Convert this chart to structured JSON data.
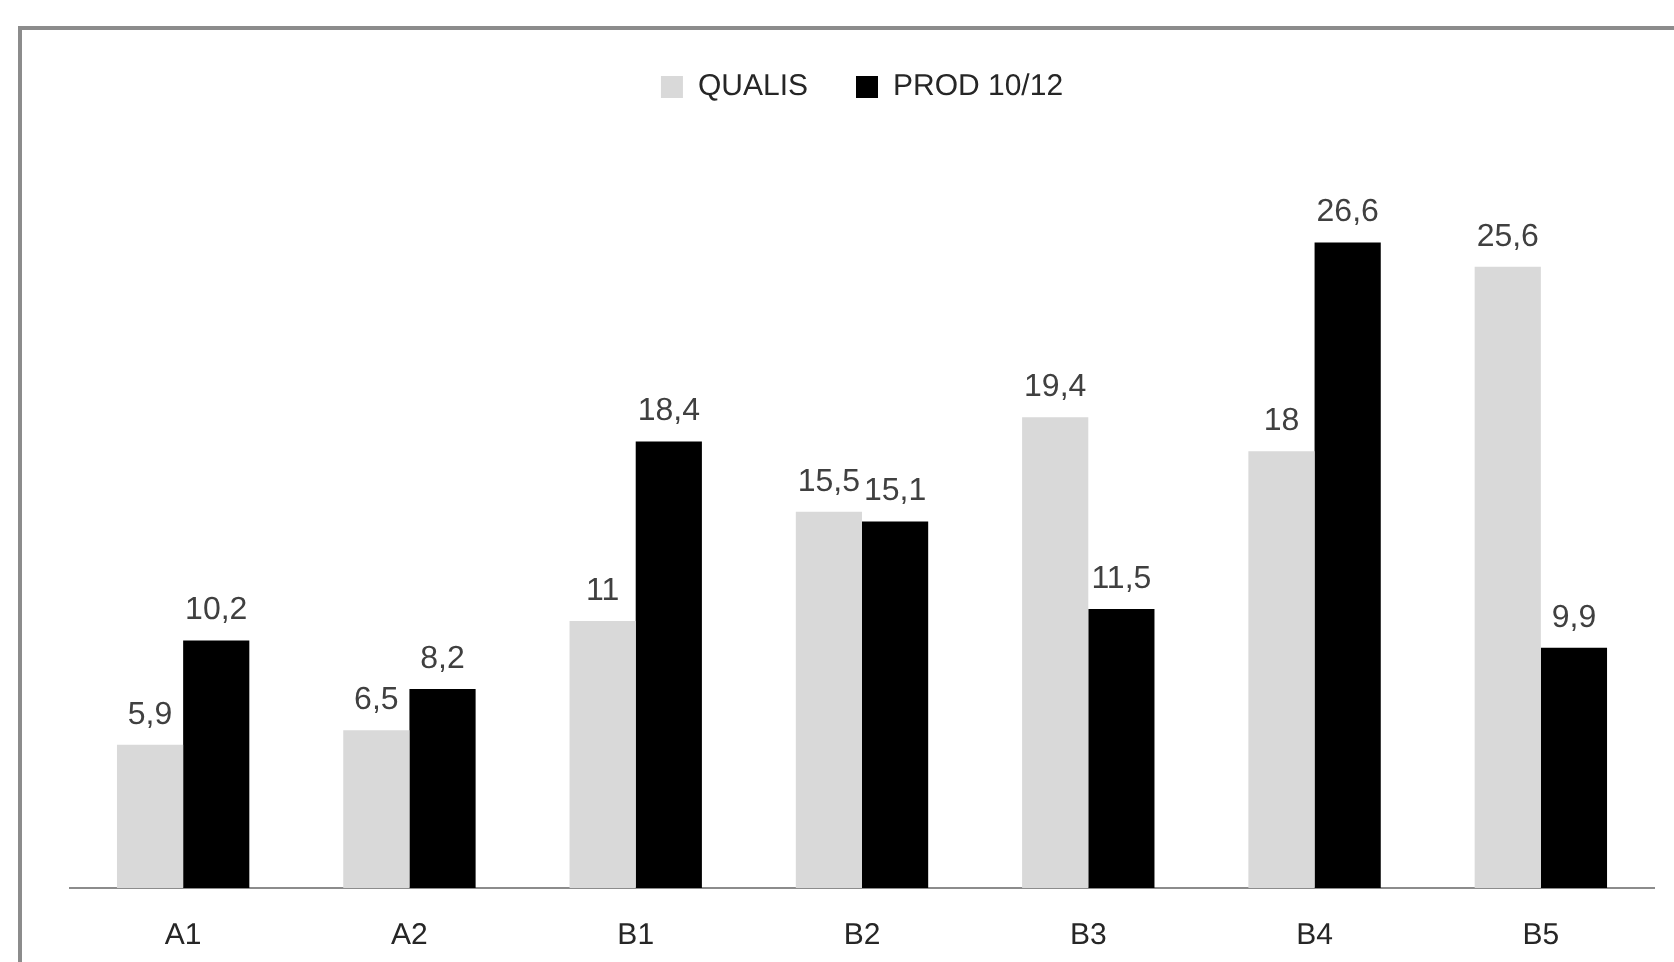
{
  "chart_data": {
    "type": "bar",
    "categories": [
      "A1",
      "A2",
      "B1",
      "B2",
      "B3",
      "B4",
      "B5"
    ],
    "series": [
      {
        "name": "QUALIS",
        "color": "#d9d9d9",
        "values": [
          5.9,
          6.5,
          11,
          15.5,
          19.4,
          18,
          25.6
        ],
        "value_labels": [
          "5,9",
          "6,5",
          "11",
          "15,5",
          "19,4",
          "18",
          "25,6"
        ]
      },
      {
        "name": "PROD 10/12",
        "color": "#000000",
        "values": [
          10.2,
          8.2,
          18.4,
          15.1,
          11.5,
          26.6,
          9.9
        ],
        "value_labels": [
          "10,2",
          "8,2",
          "18,4",
          "15,1",
          "11,5",
          "26,6",
          "9,9"
        ]
      }
    ],
    "tick_labels": "x",
    "legend": "top"
  }
}
